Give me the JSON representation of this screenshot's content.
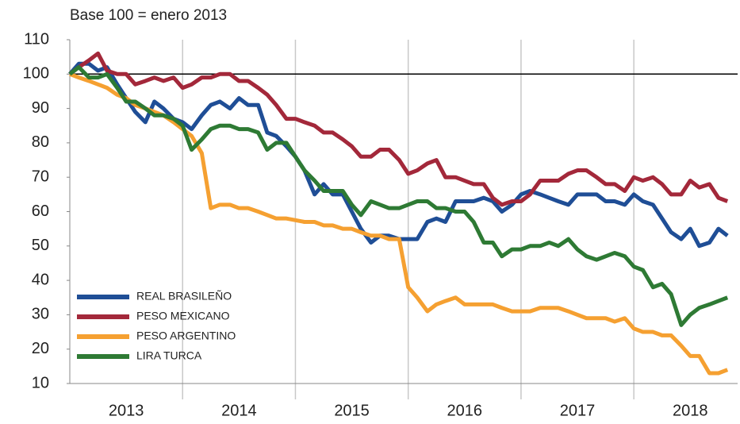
{
  "chart_data": {
    "type": "line",
    "subtitle": "Base 100 = enero 2013",
    "x": [
      2013.0,
      2013.08,
      2013.17,
      2013.25,
      2013.33,
      2013.42,
      2013.5,
      2013.58,
      2013.67,
      2013.75,
      2013.83,
      2013.92,
      2014.0,
      2014.08,
      2014.17,
      2014.25,
      2014.33,
      2014.42,
      2014.5,
      2014.58,
      2014.67,
      2014.75,
      2014.83,
      2014.92,
      2015.0,
      2015.08,
      2015.17,
      2015.25,
      2015.33,
      2015.42,
      2015.5,
      2015.58,
      2015.67,
      2015.75,
      2015.83,
      2015.92,
      2016.0,
      2016.08,
      2016.17,
      2016.25,
      2016.33,
      2016.42,
      2016.5,
      2016.58,
      2016.67,
      2016.75,
      2016.83,
      2016.92,
      2017.0,
      2017.08,
      2017.17,
      2017.25,
      2017.33,
      2017.42,
      2017.5,
      2017.58,
      2017.67,
      2017.75,
      2017.83,
      2017.92,
      2018.0,
      2018.08,
      2018.17,
      2018.25,
      2018.33,
      2018.42,
      2018.5,
      2018.58,
      2018.67,
      2018.75,
      2018.83
    ],
    "series": [
      {
        "name": "REAL BRASILEÑO",
        "color": "#1f4e96",
        "values": [
          100,
          103,
          103,
          101,
          102,
          97,
          93,
          89,
          86,
          92,
          90,
          87,
          86,
          84,
          88,
          91,
          92,
          90,
          93,
          91,
          91,
          83,
          82,
          79,
          76,
          72,
          65,
          68,
          65,
          65,
          60,
          55,
          51,
          53,
          53,
          52,
          52,
          52,
          57,
          58,
          57,
          63,
          63,
          63,
          64,
          63,
          60,
          62,
          65,
          66,
          65,
          64,
          63,
          62,
          65,
          65,
          65,
          63,
          63,
          62,
          65,
          63,
          62,
          58,
          54,
          52,
          55,
          50,
          51,
          55,
          53
        ]
      },
      {
        "name": "PESO MEXICANO",
        "color": "#a3283a",
        "values": [
          100,
          102,
          104,
          106,
          101,
          100,
          100,
          97,
          98,
          99,
          98,
          99,
          96,
          97,
          99,
          99,
          100,
          100,
          98,
          98,
          96,
          94,
          91,
          87,
          87,
          86,
          85,
          83,
          83,
          81,
          79,
          76,
          76,
          78,
          78,
          75,
          71,
          72,
          74,
          75,
          70,
          70,
          69,
          68,
          68,
          64,
          62,
          63,
          63,
          65,
          69,
          69,
          69,
          71,
          72,
          72,
          70,
          68,
          68,
          66,
          70,
          69,
          70,
          68,
          65,
          65,
          69,
          67,
          68,
          64,
          63
        ]
      },
      {
        "name": "PESO ARGENTINO",
        "color": "#f5a031",
        "values": [
          100,
          99,
          98,
          97,
          96,
          94,
          93,
          91,
          90,
          89,
          88,
          86,
          84,
          82,
          77,
          61,
          62,
          62,
          61,
          61,
          60,
          59,
          58,
          58,
          57.5,
          57,
          57,
          56,
          56,
          55,
          55,
          54,
          53,
          53,
          52,
          52,
          38,
          35,
          31,
          33,
          34,
          35,
          33,
          33,
          33,
          33,
          32,
          31,
          31,
          31,
          32,
          32,
          32,
          31,
          30,
          29,
          29,
          29,
          28,
          29,
          26,
          25,
          25,
          24,
          24,
          21,
          18,
          18,
          13,
          13,
          14
        ]
      },
      {
        "name": "LIRA TURCA",
        "color": "#2e7a34",
        "values": [
          100,
          102,
          99,
          99,
          100,
          96,
          92,
          92,
          90,
          88,
          88,
          87,
          85,
          78,
          81,
          84,
          85,
          85,
          84,
          84,
          83,
          78,
          80,
          80,
          76,
          72,
          69,
          66,
          66,
          66,
          62,
          59,
          63,
          62,
          61,
          61,
          62,
          63,
          63,
          61,
          61,
          60,
          60,
          57,
          51,
          51,
          47,
          49,
          49,
          50,
          50,
          51,
          50,
          52,
          49,
          47,
          46,
          47,
          48,
          47,
          44,
          43,
          38,
          39,
          36,
          27,
          30,
          32,
          33,
          34,
          35
        ]
      }
    ],
    "xlim": [
      2013,
      2018.92
    ],
    "xticks": [
      {
        "value": 2013.5,
        "label": "2013"
      },
      {
        "value": 2014.5,
        "label": "2014"
      },
      {
        "value": 2015.5,
        "label": "2015"
      },
      {
        "value": 2016.5,
        "label": "2016"
      },
      {
        "value": 2017.5,
        "label": "2017"
      },
      {
        "value": 2018.5,
        "label": "2018"
      }
    ],
    "x_grid": [
      2014,
      2015,
      2016,
      2017,
      2018
    ],
    "ylim": [
      10,
      110
    ],
    "yticks": [
      10,
      20,
      30,
      40,
      50,
      60,
      70,
      80,
      90,
      100,
      110
    ],
    "reference_line": 100,
    "legend": "lower-left"
  }
}
